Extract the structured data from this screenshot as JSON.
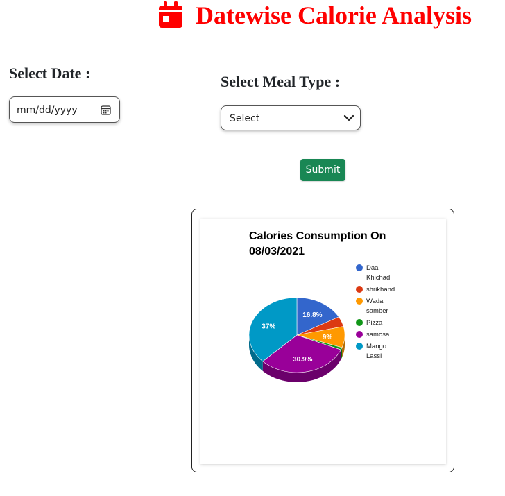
{
  "header": {
    "title": "Datewise Calorie Analysis",
    "icon": "calendar-icon",
    "accent_color": "#ff0000"
  },
  "form": {
    "date_label": "Select Date :",
    "date_placeholder": "mm/dd/yyyy",
    "meal_label": "Select Meal Type :",
    "meal_selected": "Select",
    "submit_label": "Submit",
    "submit_color": "#198754"
  },
  "chart_data": {
    "type": "pie",
    "title": "Calories Consumption On 08/03/2021",
    "title_lines": [
      "Calories Consumption On",
      "08/03/2021"
    ],
    "legend_position": "right",
    "categories": [
      "Daal Khichadi",
      "shrikhand",
      "Wada samber",
      "Pizza",
      "samosa",
      "Mango Lassi"
    ],
    "legend_lines": [
      [
        "Daal",
        "Khichadi"
      ],
      [
        "shrikhand"
      ],
      [
        "Wada",
        "samber"
      ],
      [
        "Pizza"
      ],
      [
        "samosa"
      ],
      [
        "Mango",
        "Lassi"
      ]
    ],
    "values": [
      16.8,
      4.3,
      9.0,
      1.0,
      30.9,
      37.0
    ],
    "slice_labels": [
      "16.8%",
      "",
      "9%",
      "",
      "30.9%",
      "37%"
    ],
    "colors": [
      "#3366cc",
      "#dc3912",
      "#ff9900",
      "#109618",
      "#990099",
      "#0099c6"
    ]
  }
}
